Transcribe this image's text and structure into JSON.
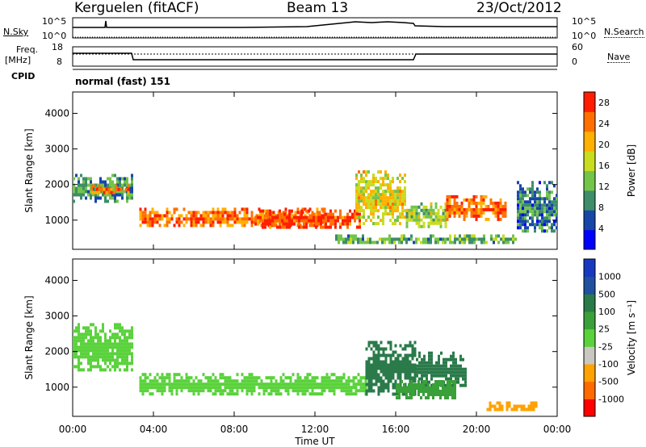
{
  "header": {
    "title": "Kerguelen (fitACF)",
    "beam": "Beam 13",
    "date": "23/Oct/2012"
  },
  "panels": {
    "nsky_label": "N.Sky",
    "nsky_ticks": [
      "10^5",
      "10^0"
    ],
    "nsearch_label": "N.Search",
    "nsearch_ticks": [
      "10^5",
      "10^0"
    ],
    "freq_label": "Freq.",
    "freq_unit": "[MHz]",
    "freq_ticks": [
      "18",
      "8"
    ],
    "nave_label": "Nave",
    "nave_ticks": [
      "60",
      "0"
    ],
    "cpid_label": "CPID",
    "cpid_value": "normal (fast) 151"
  },
  "colors": {
    "power_scale": [
      "#0000ff",
      "#1846a8",
      "#3d8d6a",
      "#74c44a",
      "#c8dc20",
      "#ffb000",
      "#ff7000",
      "#ff1e00"
    ],
    "velocity_scale": [
      "#ff0000",
      "#ff6a00",
      "#ffa200",
      "#c8c8c0",
      "#5ad23c",
      "#3aa03a",
      "#2a7a4a",
      "#2050a0",
      "#1838c0"
    ],
    "ground_scatter": "#c8c8c0"
  },
  "chart_data": [
    {
      "type": "heatmap",
      "name": "power",
      "ylabel": "Slant Range [km]",
      "xlabel": "",
      "x_ticks": [
        "00:00",
        "04:00",
        "08:00",
        "12:00",
        "16:00",
        "20:00",
        "00:00"
      ],
      "x_range_hours": [
        0,
        24
      ],
      "y_ticks": [
        1000,
        2000,
        3000,
        4000
      ],
      "ylim": [
        180,
        4600
      ],
      "colorbar_label": "Power [dB]",
      "colorbar_ticks": [
        4,
        8,
        12,
        16,
        20,
        24,
        28
      ],
      "colorbar_range": [
        0,
        30
      ],
      "regions": [
        {
          "t0": 0.0,
          "t1": 2.9,
          "r0": 1500,
          "r1": 2300,
          "value": 10
        },
        {
          "t0": 0.9,
          "t1": 2.8,
          "r0": 1750,
          "r1": 2000,
          "value": 24
        },
        {
          "t0": 3.3,
          "t1": 12.5,
          "r0": 850,
          "r1": 1350,
          "value": 24
        },
        {
          "t0": 9.0,
          "t1": 14.2,
          "r0": 800,
          "r1": 1300,
          "value": 27
        },
        {
          "t0": 14.0,
          "t1": 16.5,
          "r0": 900,
          "r1": 2400,
          "value": 18
        },
        {
          "t0": 16.5,
          "t1": 18.5,
          "r0": 850,
          "r1": 1500,
          "value": 14
        },
        {
          "t0": 18.5,
          "t1": 21.5,
          "r0": 1000,
          "r1": 1700,
          "value": 24
        },
        {
          "t0": 13.0,
          "t1": 22.0,
          "r0": 350,
          "r1": 600,
          "value": 12
        },
        {
          "t0": 22.0,
          "t1": 24.0,
          "r0": 700,
          "r1": 2100,
          "value": 8
        }
      ]
    },
    {
      "type": "heatmap",
      "name": "velocity",
      "ylabel": "Slant Range [km]",
      "xlabel": "Time UT",
      "x_ticks": [
        "00:00",
        "04:00",
        "08:00",
        "12:00",
        "16:00",
        "20:00",
        "00:00"
      ],
      "x_range_hours": [
        0,
        24
      ],
      "y_ticks": [
        1000,
        2000,
        3000,
        4000
      ],
      "ylim": [
        180,
        4600
      ],
      "colorbar_label": "Velocity [m s⁻¹]",
      "colorbar_ticks": [
        "1000",
        "500",
        "100",
        "25",
        "-25",
        "-100",
        "-500",
        "-1000"
      ],
      "regions": [
        {
          "t0": 0.0,
          "t1": 3.0,
          "r0": 1500,
          "r1": 2800,
          "value": 0
        },
        {
          "t0": 3.3,
          "t1": 14.5,
          "r0": 800,
          "r1": 1400,
          "value": 0
        },
        {
          "t0": 14.5,
          "t1": 17.0,
          "r0": 800,
          "r1": 2300,
          "value": 150
        },
        {
          "t0": 17.0,
          "t1": 19.5,
          "r0": 1000,
          "r1": 2000,
          "value": 300
        },
        {
          "t0": 16.0,
          "t1": 19.0,
          "r0": 700,
          "r1": 1200,
          "value": 50
        },
        {
          "t0": 20.5,
          "t1": 23.0,
          "r0": 350,
          "r1": 600,
          "value": -200
        }
      ]
    }
  ]
}
